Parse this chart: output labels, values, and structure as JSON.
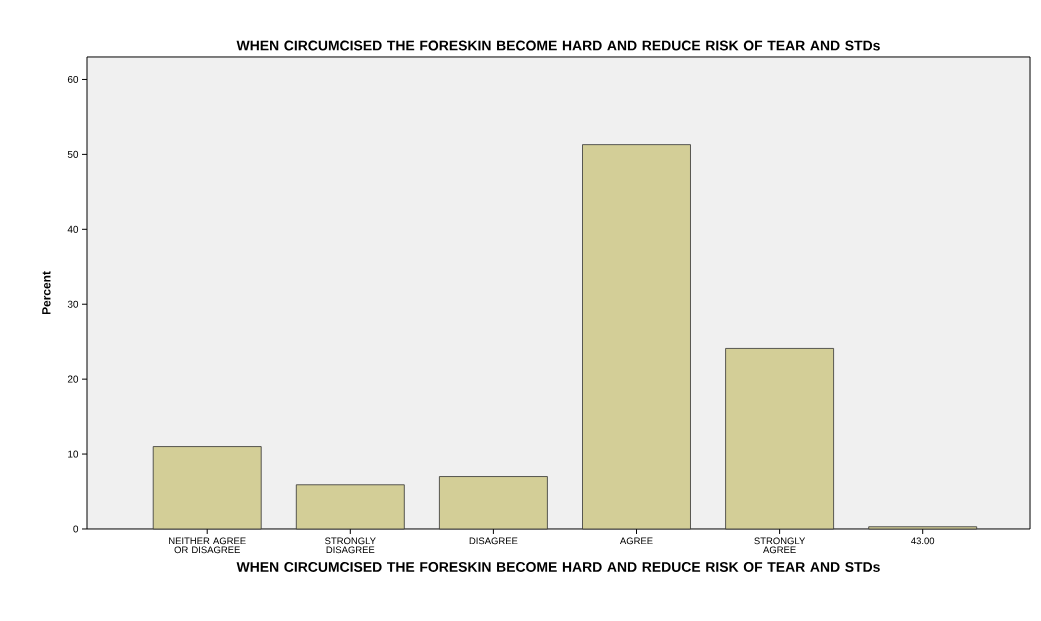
{
  "chart_data": {
    "type": "bar",
    "title": "WHEN CIRCUMCISED THE FORESKIN BECOME HARD AND REDUCE RISK OF TEAR AND STDs",
    "xlabel": "WHEN CIRCUMCISED THE FORESKIN BECOME HARD AND REDUCE RISK OF TEAR AND STDs",
    "ylabel": "Percent",
    "categories": [
      "NEITHER AGREE OR DISAGREE",
      "STRONGLY DISAGREE",
      "DISAGREE",
      "AGREE",
      "STRONGLY AGREE",
      "43.00"
    ],
    "values": [
      11.0,
      5.9,
      7.0,
      51.3,
      24.1,
      0.3
    ],
    "color": "#d3ce97",
    "ylim": [
      0,
      63
    ],
    "yticks": [
      0,
      10,
      20,
      30,
      40,
      50,
      60
    ]
  }
}
